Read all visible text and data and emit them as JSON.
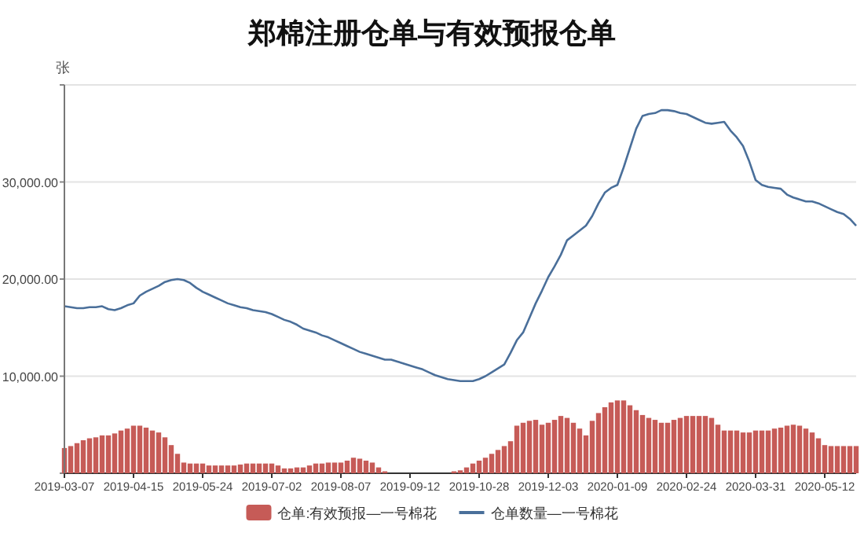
{
  "chart_data": {
    "type": "bar",
    "title": "郑棉注册仓单与有效预报仓单",
    "ylabel": "张",
    "categories": [
      "2019-03-07",
      null,
      null,
      null,
      null,
      null,
      null,
      null,
      null,
      null,
      null,
      "2019-04-15",
      null,
      null,
      null,
      null,
      null,
      null,
      null,
      null,
      null,
      null,
      "2019-05-24",
      null,
      null,
      null,
      null,
      null,
      null,
      null,
      null,
      null,
      null,
      "2019-07-02",
      null,
      null,
      null,
      null,
      null,
      null,
      null,
      null,
      null,
      null,
      "2019-08-07",
      null,
      null,
      null,
      null,
      null,
      null,
      null,
      null,
      null,
      null,
      "2019-09-12",
      null,
      null,
      null,
      null,
      null,
      null,
      null,
      null,
      null,
      null,
      "2019-10-28",
      null,
      null,
      null,
      null,
      null,
      null,
      null,
      null,
      null,
      null,
      "2019-12-03",
      null,
      null,
      null,
      null,
      null,
      null,
      null,
      null,
      null,
      null,
      "2020-01-09",
      null,
      null,
      null,
      null,
      null,
      null,
      null,
      null,
      null,
      null,
      "2020-02-24",
      null,
      null,
      null,
      null,
      null,
      null,
      null,
      null,
      null,
      null,
      "2020-03-31",
      null,
      null,
      null,
      null,
      null,
      null,
      null,
      null,
      null,
      null,
      "2020-05-12",
      null,
      null,
      null,
      null,
      null
    ],
    "series": [
      {
        "name": "仓单:有效预报—一号棉花",
        "color": "#c65b57",
        "values": [
          2600,
          2800,
          3100,
          3400,
          3600,
          3700,
          3900,
          3900,
          4100,
          4400,
          4600,
          4900,
          4900,
          4700,
          4400,
          4200,
          3700,
          2900,
          2000,
          1100,
          1000,
          1000,
          1000,
          800,
          800,
          800,
          800,
          800,
          900,
          1000,
          1000,
          1000,
          1000,
          1000,
          800,
          500,
          500,
          600,
          600,
          800,
          1000,
          1000,
          1100,
          1100,
          1100,
          1300,
          1600,
          1500,
          1300,
          1100,
          600,
          200,
          0,
          0,
          0,
          0,
          0,
          0,
          0,
          0,
          0,
          0,
          200,
          300,
          600,
          1000,
          1300,
          1600,
          2000,
          2400,
          2800,
          3300,
          4900,
          5200,
          5400,
          5500,
          5000,
          5200,
          5500,
          5900,
          5700,
          5200,
          4600,
          3900,
          5400,
          6200,
          6800,
          7300,
          7500,
          7500,
          7000,
          6500,
          6000,
          5700,
          5500,
          5200,
          5200,
          5500,
          5700,
          5900,
          5900,
          5900,
          5900,
          5700,
          5000,
          4400,
          4400,
          4400,
          4200,
          4200,
          4400,
          4400,
          4400,
          4600,
          4700,
          4900,
          5000,
          4900,
          4600,
          4200,
          3600,
          2900,
          2800,
          2800,
          2800,
          2800,
          2800
        ]
      },
      {
        "name": "仓单数量—一号棉花",
        "type": "line",
        "color": "#4a6f9a",
        "values": [
          17200,
          17100,
          17000,
          17000,
          17100,
          17100,
          17200,
          16900,
          16800,
          17000,
          17300,
          17500,
          18300,
          18700,
          19000,
          19300,
          19700,
          19900,
          20000,
          19900,
          19600,
          19100,
          18700,
          18400,
          18100,
          17800,
          17500,
          17300,
          17100,
          17000,
          16800,
          16700,
          16600,
          16400,
          16100,
          15800,
          15600,
          15300,
          14900,
          14700,
          14500,
          14200,
          14000,
          13700,
          13400,
          13100,
          12800,
          12500,
          12300,
          12100,
          11900,
          11700,
          11700,
          11500,
          11300,
          11100,
          10900,
          10700,
          10400,
          10100,
          9900,
          9700,
          9600,
          9500,
          9500,
          9500,
          9700,
          10000,
          10400,
          10800,
          11200,
          12400,
          13700,
          14500,
          16000,
          17500,
          18800,
          20200,
          21300,
          22500,
          24000,
          24500,
          25000,
          25500,
          26500,
          27800,
          28900,
          29400,
          29700,
          31500,
          33500,
          35500,
          36800,
          37000,
          37100,
          37400,
          37400,
          37300,
          37100,
          37000,
          36700,
          36400,
          36100,
          36000,
          36100,
          36200,
          35300,
          34600,
          33700,
          32100,
          30200,
          29700,
          29500,
          29400,
          29300,
          28700,
          28400,
          28200,
          28000,
          28000,
          27800,
          27500,
          27200,
          26900,
          26700,
          26200,
          25500
        ]
      }
    ],
    "ylim": [
      0,
      40000
    ],
    "yticks": [
      {
        "value": 0,
        "label": null
      },
      {
        "value": 10000,
        "label": "10,000.00"
      },
      {
        "value": 20000,
        "label": "20,000.00"
      },
      {
        "value": 30000,
        "label": "30,000.00"
      },
      {
        "value": 40000,
        "label": null
      }
    ],
    "grid": "y",
    "legend": "bottom"
  }
}
